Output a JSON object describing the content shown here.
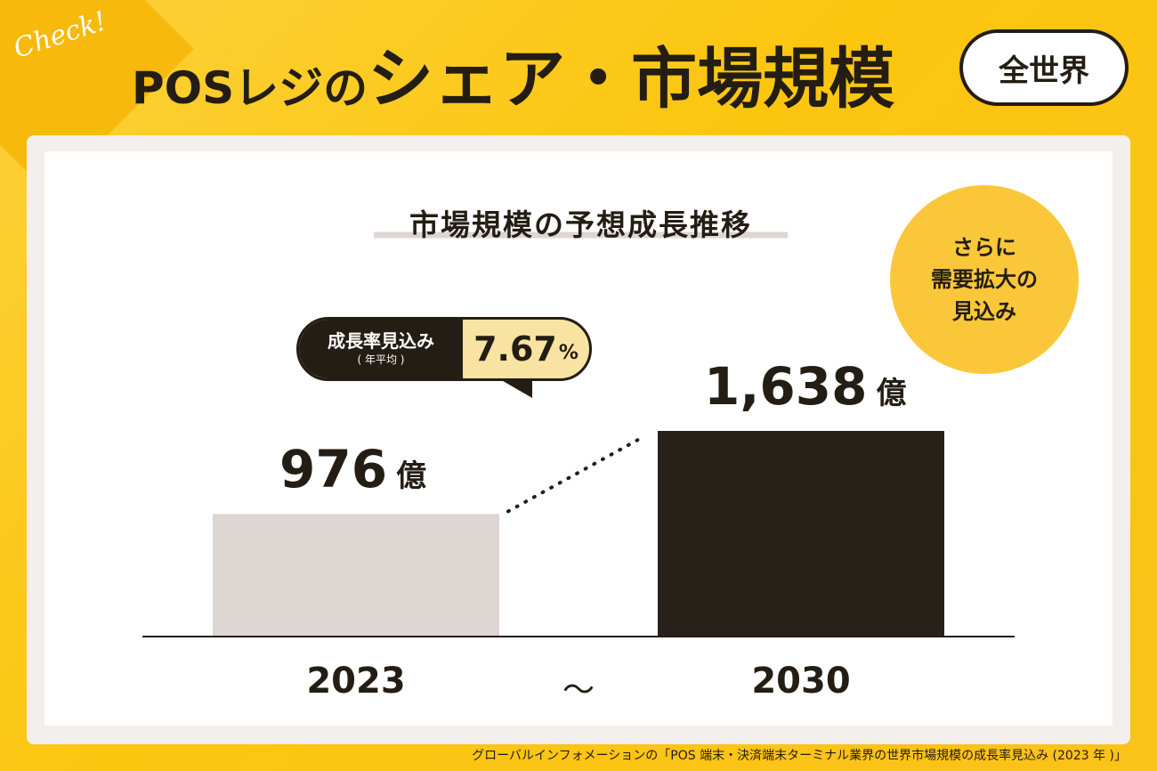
{
  "badge_text": "Check!",
  "title": {
    "part1": "POSレジの",
    "part2": "シェア・市場規模"
  },
  "region_badge": "全世界",
  "growth_callout": {
    "label": "成長率見込み",
    "sub": "( 年平均 )",
    "value": "7.67",
    "unit": "%"
  },
  "note_lines": [
    "さらに",
    "需要拡大の",
    "見込み"
  ],
  "range_separator": "〜",
  "source": "グローバルインフォメーションの「POS 端末・決済端末ターミナル業界の世界市場規模の成長率見込み (2023 年 )」",
  "colors": {
    "background": "#fcc60f",
    "bar_2023": "#ddd6d3",
    "bar_2030": "#28211a",
    "text": "#231d13",
    "note_circle": "#fbc73a"
  },
  "chart_data": {
    "type": "bar",
    "title": "市場規模の予想成長推移",
    "categories": [
      "2023",
      "2030"
    ],
    "values": [
      976,
      1638
    ],
    "value_labels": [
      "976",
      "1,638"
    ],
    "unit": "億",
    "ylim": [
      0,
      1638
    ],
    "grid": false
  }
}
